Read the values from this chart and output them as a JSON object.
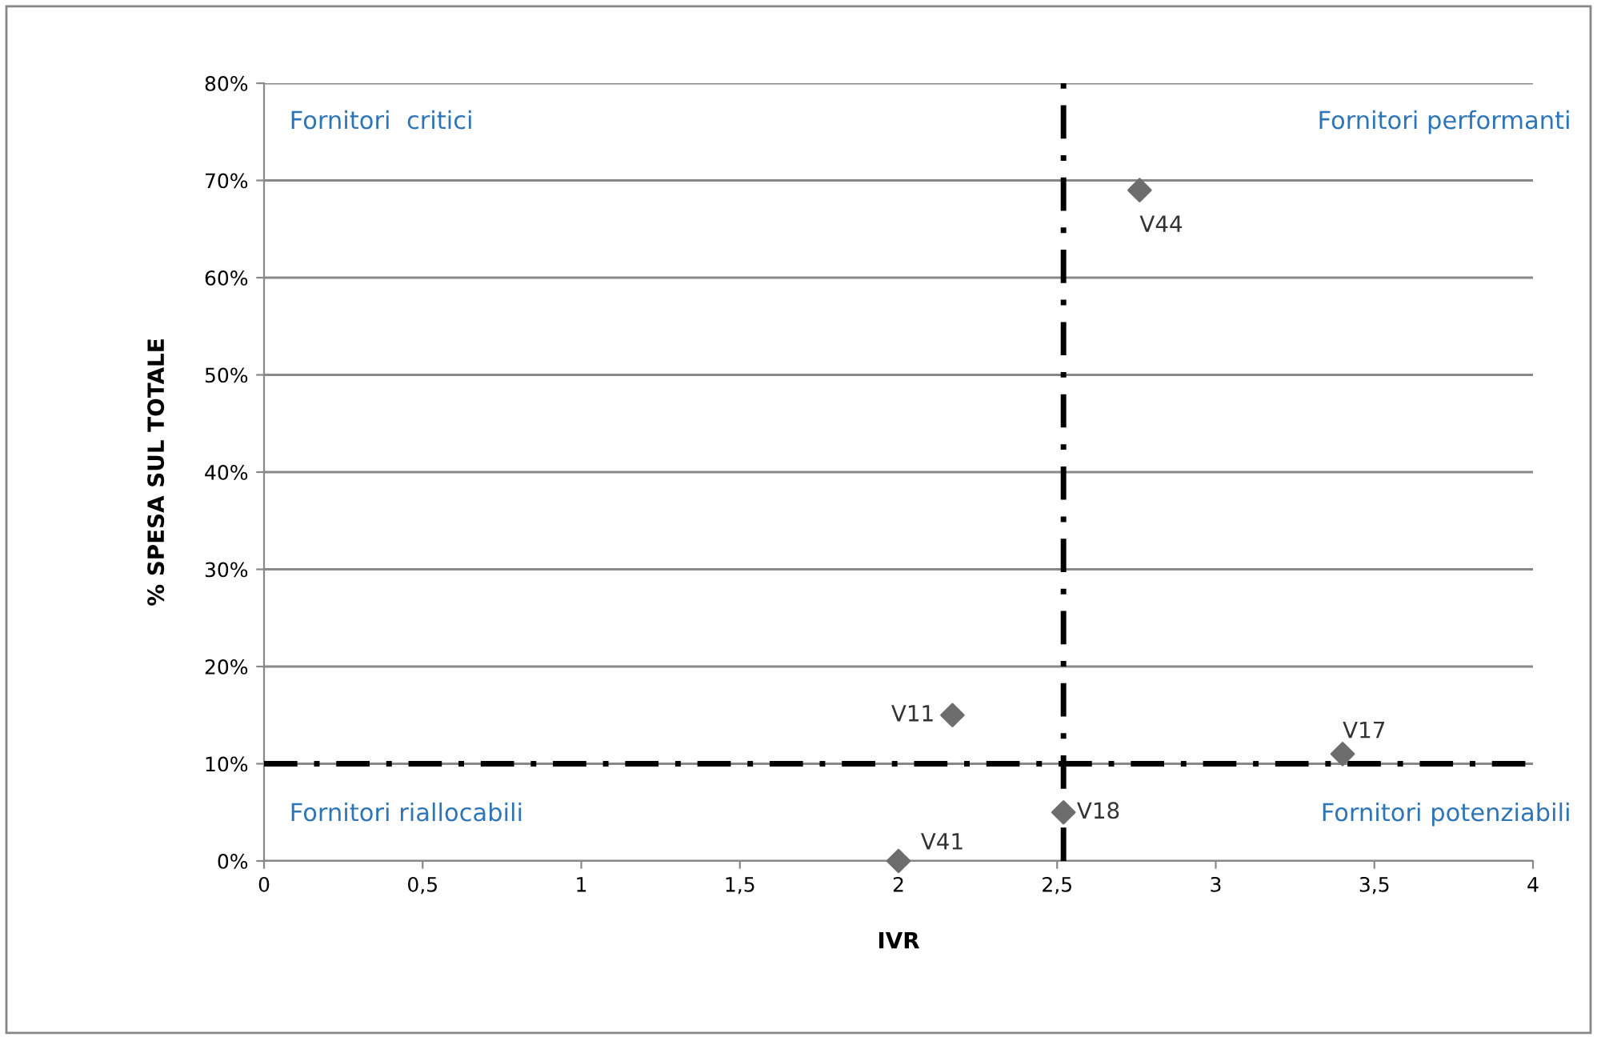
{
  "chart_data": {
    "type": "scatter",
    "xlabel": "IVR",
    "ylabel": "% SPESA SUL TOTALE",
    "x": [
      2.76,
      2.17,
      3.4,
      2.52,
      2.0
    ],
    "values": [
      69,
      15,
      11,
      5,
      0
    ],
    "value_labels": [
      "V44",
      "V11",
      "V17",
      "V18",
      "V41"
    ],
    "color": "#6d6d6d",
    "marker": "diamond",
    "grid": "y",
    "xlim": [
      0,
      4
    ],
    "xticks": [
      0,
      {
        "value": 0.5,
        "label": "0,5"
      },
      1,
      {
        "value": 1.5,
        "label": "1,5"
      },
      2,
      {
        "value": 2.5,
        "label": "2,5"
      },
      3,
      {
        "value": 3.5,
        "label": "3,5"
      },
      4
    ],
    "ylim": [
      0,
      80
    ],
    "yticks": [
      {
        "value": 0,
        "label": "0%"
      },
      {
        "value": 10,
        "label": "10%"
      },
      {
        "value": 20,
        "label": "20%"
      },
      {
        "value": 30,
        "label": "30%"
      },
      {
        "value": 40,
        "label": "40%"
      },
      {
        "value": 50,
        "label": "50%"
      },
      {
        "value": 60,
        "label": "60%"
      },
      {
        "value": 70,
        "label": "70%"
      },
      {
        "value": 80,
        "label": "80%"
      }
    ],
    "ref_lines": [
      {
        "axis": "x",
        "value": 2.52,
        "color": "#000000",
        "line_style": "dashdot"
      },
      {
        "axis": "y",
        "value": 10,
        "color": "#000000",
        "line_style": "dashdot"
      }
    ],
    "annotations": [
      "Fornitori  critici",
      "Fornitori performanti",
      "Fornitori riallocabili",
      "Fornitori potenziabili"
    ]
  }
}
